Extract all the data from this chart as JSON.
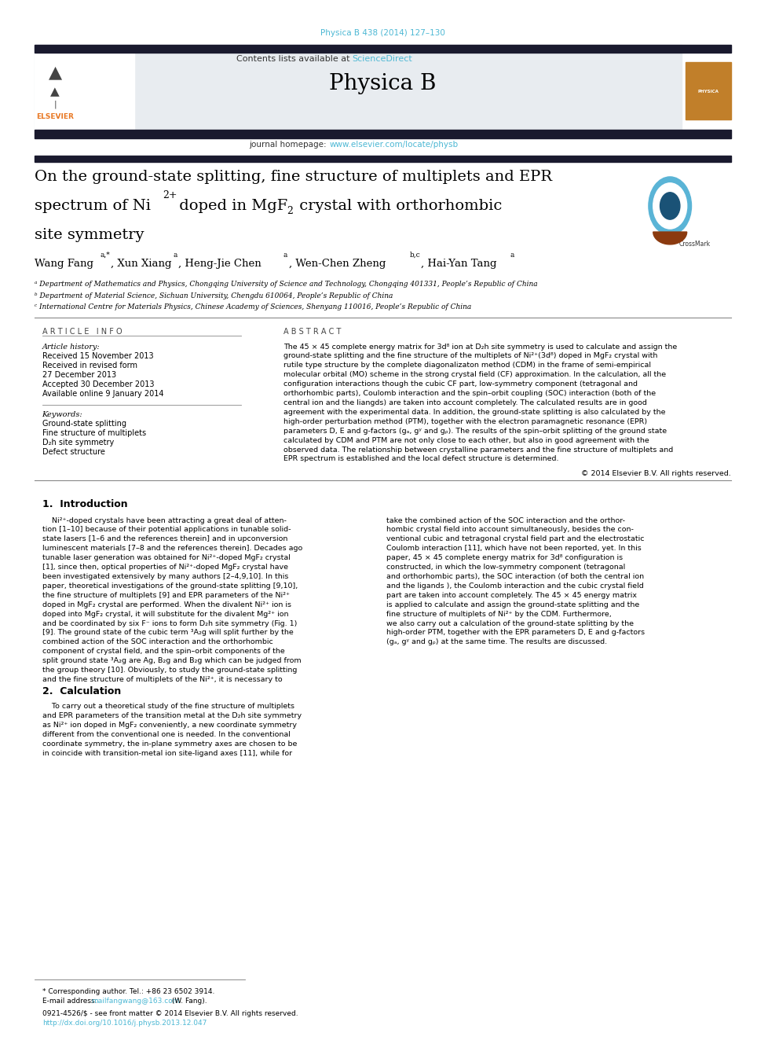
{
  "page_width": 9.92,
  "page_height": 13.23,
  "bg_color": "#ffffff",
  "top_journal_line": "Physica B 438 (2014) 127–130",
  "top_journal_color": "#4db8d4",
  "header_bg": "#e8ecf0",
  "journal_name": "Physica B",
  "homepage_url_color": "#4db8d4",
  "sciencedirect_color": "#4db8d4",
  "title_line1": "On the ground-state splitting, fine structure of multiplets and EPR",
  "title_line3": "site symmetry",
  "affil_a": "ᵃ Department of Mathematics and Physics, Chongqing University of Science and Technology, Chongqing 401331, People’s Republic of China",
  "affil_b": "ᵇ Department of Material Science, Sichuan University, Chengdu 610064, People’s Republic of China",
  "affil_c": "ᶜ International Centre for Materials Physics, Chinese Academy of Sciences, Shenyang 110016, People’s Republic of China",
  "article_history_header": "Article history:",
  "received1": "Received 15 November 2013",
  "revised": "Received in revised form",
  "revised_date": "27 December 2013",
  "accepted": "Accepted 30 December 2013",
  "available": "Available online 9 January 2014",
  "keywords_header": "Keywords:",
  "kw1": "Ground-state splitting",
  "kw2": "Fine structure of multiplets",
  "kw3": "D₂h site symmetry",
  "kw4": "Defect structure",
  "copyright": "© 2014 Elsevier B.V. All rights reserved.",
  "section1_title": "1.  Introduction",
  "section2_title": "2.  Calculation",
  "footer_note": "* Corresponding author. Tel.: +86 23 6502 3914.",
  "footer_email_label": "E-mail address: ",
  "footer_email": "mailfangwang@163.com",
  "footer_email_color": "#4db8d4",
  "footer_name": " (W. Fang).",
  "footer_issn": "0921-4526/$ - see front matter © 2014 Elsevier B.V. All rights reserved.",
  "footer_doi": "http://dx.doi.org/10.1016/j.physb.2013.12.047",
  "footer_doi_color": "#4db8d4",
  "thick_bar_color": "#1a1a2e",
  "elsevier_orange": "#e87722",
  "crossmark_blue": "#4bafd4"
}
